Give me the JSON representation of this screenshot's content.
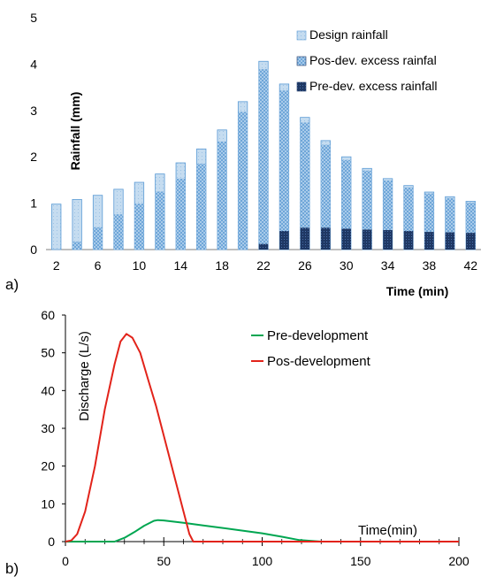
{
  "panels": {
    "a": {
      "label": "a)"
    },
    "b": {
      "label": "b)"
    }
  },
  "chart_data": [
    {
      "type": "bar",
      "panel": "a",
      "xlabel": "Time (min)",
      "ylabel": "Rainfall (mm)",
      "ylim": [
        0,
        5
      ],
      "yticks": [
        0,
        1,
        2,
        3,
        4,
        5
      ],
      "categories": [
        2,
        4,
        6,
        8,
        10,
        12,
        14,
        16,
        18,
        20,
        22,
        24,
        26,
        28,
        30,
        32,
        34,
        36,
        38,
        40,
        42
      ],
      "xtick_labels": [
        "2",
        "6",
        "10",
        "14",
        "18",
        "22",
        "26",
        "30",
        "34",
        "38",
        "42"
      ],
      "legend_position": "top-right",
      "series": [
        {
          "name": "Design rainfall",
          "color": "#bcd7ee",
          "values": [
            0.98,
            1.08,
            1.17,
            1.3,
            1.45,
            1.63,
            1.87,
            2.17,
            2.58,
            3.19,
            4.06,
            3.57,
            2.85,
            2.35,
            2.0,
            1.75,
            1.53,
            1.38,
            1.24,
            1.14,
            1.04
          ]
        },
        {
          "name": "Pos-dev. excess rainfal",
          "color": "#5b9bd5",
          "values": [
            0.0,
            0.17,
            0.48,
            0.76,
            0.99,
            1.25,
            1.53,
            1.85,
            2.33,
            2.97,
            3.89,
            3.43,
            2.74,
            2.26,
            1.93,
            1.7,
            1.49,
            1.34,
            1.21,
            1.11,
            1.01
          ]
        },
        {
          "name": "Pre-dev. excess rainfall",
          "color": "#1f3864",
          "values": [
            0,
            0,
            0,
            0,
            0,
            0,
            0,
            0,
            0,
            0,
            0.12,
            0.4,
            0.47,
            0.47,
            0.45,
            0.43,
            0.42,
            0.4,
            0.38,
            0.37,
            0.36
          ]
        }
      ]
    },
    {
      "type": "line",
      "panel": "b",
      "xlabel": "Time(min)",
      "ylabel": "Discharge (L/s)",
      "xlim": [
        0,
        200
      ],
      "ylim": [
        0,
        60
      ],
      "xticks": [
        0,
        50,
        100,
        150,
        200
      ],
      "yticks": [
        0,
        10,
        20,
        30,
        40,
        50,
        60
      ],
      "legend_position": "top-right",
      "series": [
        {
          "name": "Pre-development",
          "color": "#00a651",
          "x": [
            0,
            20,
            25,
            30,
            35,
            40,
            45,
            47,
            50,
            60,
            70,
            80,
            90,
            100,
            110,
            119,
            130,
            150,
            200
          ],
          "y": [
            0,
            0,
            0,
            1.0,
            2.5,
            4.2,
            5.5,
            5.7,
            5.6,
            5.0,
            4.3,
            3.6,
            2.9,
            2.2,
            1.3,
            0.4,
            0,
            0,
            0
          ]
        },
        {
          "name": "Pos-development",
          "color": "#e2231a",
          "x": [
            0,
            3,
            6,
            10,
            15,
            20,
            25,
            28,
            31,
            34,
            38,
            42,
            46,
            50,
            55,
            60,
            63,
            65,
            70,
            100,
            150,
            200
          ],
          "y": [
            0,
            0.3,
            2,
            8,
            20,
            35,
            47,
            53,
            55,
            54,
            50,
            43,
            36,
            28,
            18,
            8,
            2,
            0,
            0,
            0,
            0,
            0
          ]
        }
      ]
    }
  ]
}
